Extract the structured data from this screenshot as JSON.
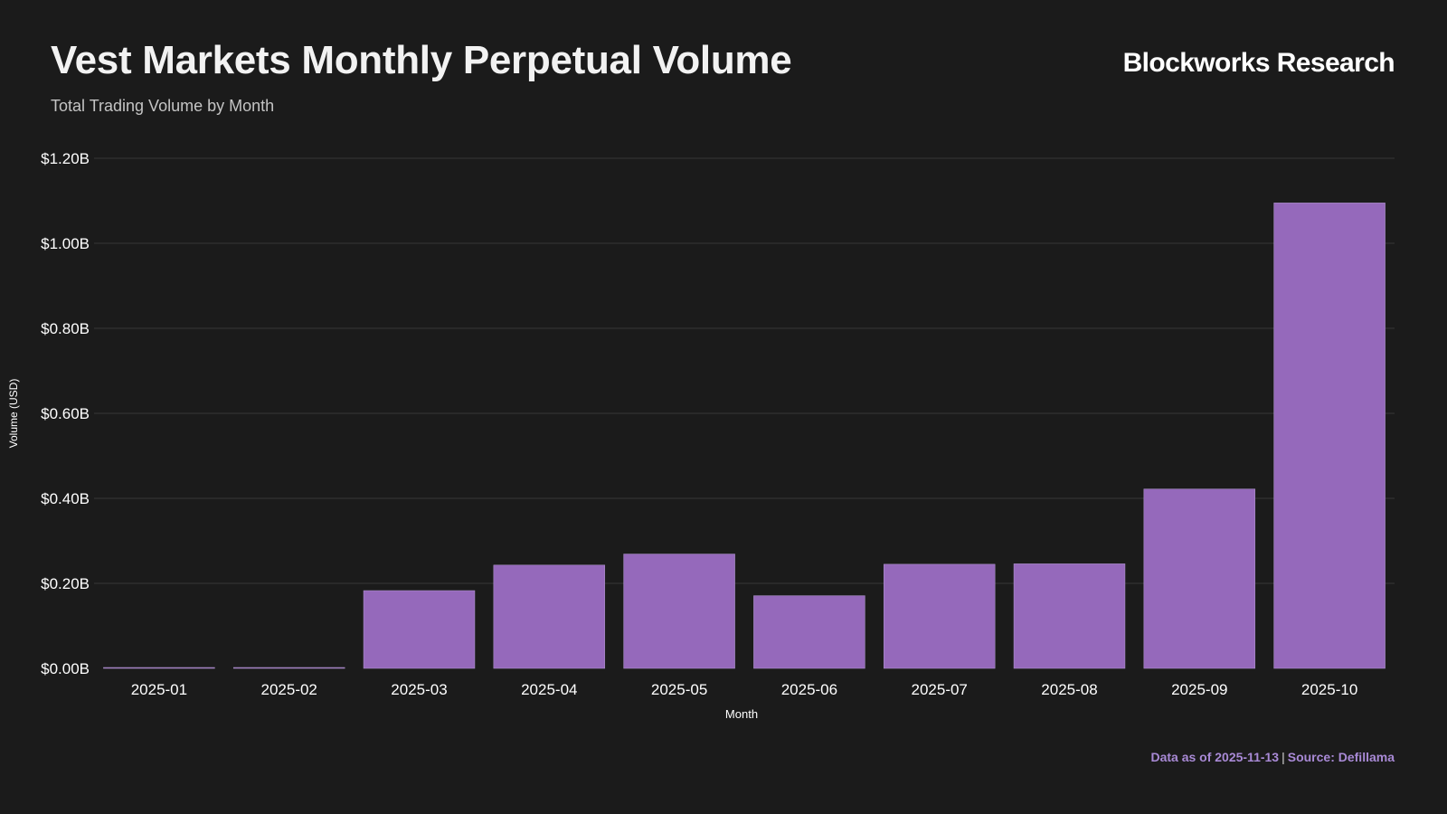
{
  "header": {
    "title": "Vest Markets Monthly Perpetual Volume",
    "subtitle": "Total Trading Volume by Month",
    "brand": "Blockworks Research"
  },
  "footer": {
    "data_as_of": "Data as of 2025-11-13",
    "separator": "|",
    "source": "Source: Defillama"
  },
  "colors": {
    "background": "#1b1b1b",
    "bar": "#9569bb",
    "grid": "#2e2e2e",
    "footer_accent": "#a98ad6"
  },
  "chart_data": {
    "type": "bar",
    "title": "Vest Markets Monthly Perpetual Volume",
    "subtitle": "Total Trading Volume by Month",
    "xlabel": "Month",
    "ylabel": "Volume (USD)",
    "categories": [
      "2025-01",
      "2025-02",
      "2025-03",
      "2025-04",
      "2025-05",
      "2025-06",
      "2025-07",
      "2025-08",
      "2025-09",
      "2025-10"
    ],
    "values": [
      0.002,
      0.001,
      0.183,
      0.243,
      0.269,
      0.171,
      0.245,
      0.246,
      0.422,
      1.095
    ],
    "value_unit": "USD billions",
    "ylim": [
      0,
      1.2
    ],
    "y_ticks": [
      0,
      0.2,
      0.4,
      0.6,
      0.8,
      1.0,
      1.2
    ],
    "y_tick_labels": [
      "$0.00B",
      "$0.20B",
      "$0.40B",
      "$0.60B",
      "$0.80B",
      "$1.00B",
      "$1.20B"
    ],
    "grid": true,
    "legend": "none"
  }
}
